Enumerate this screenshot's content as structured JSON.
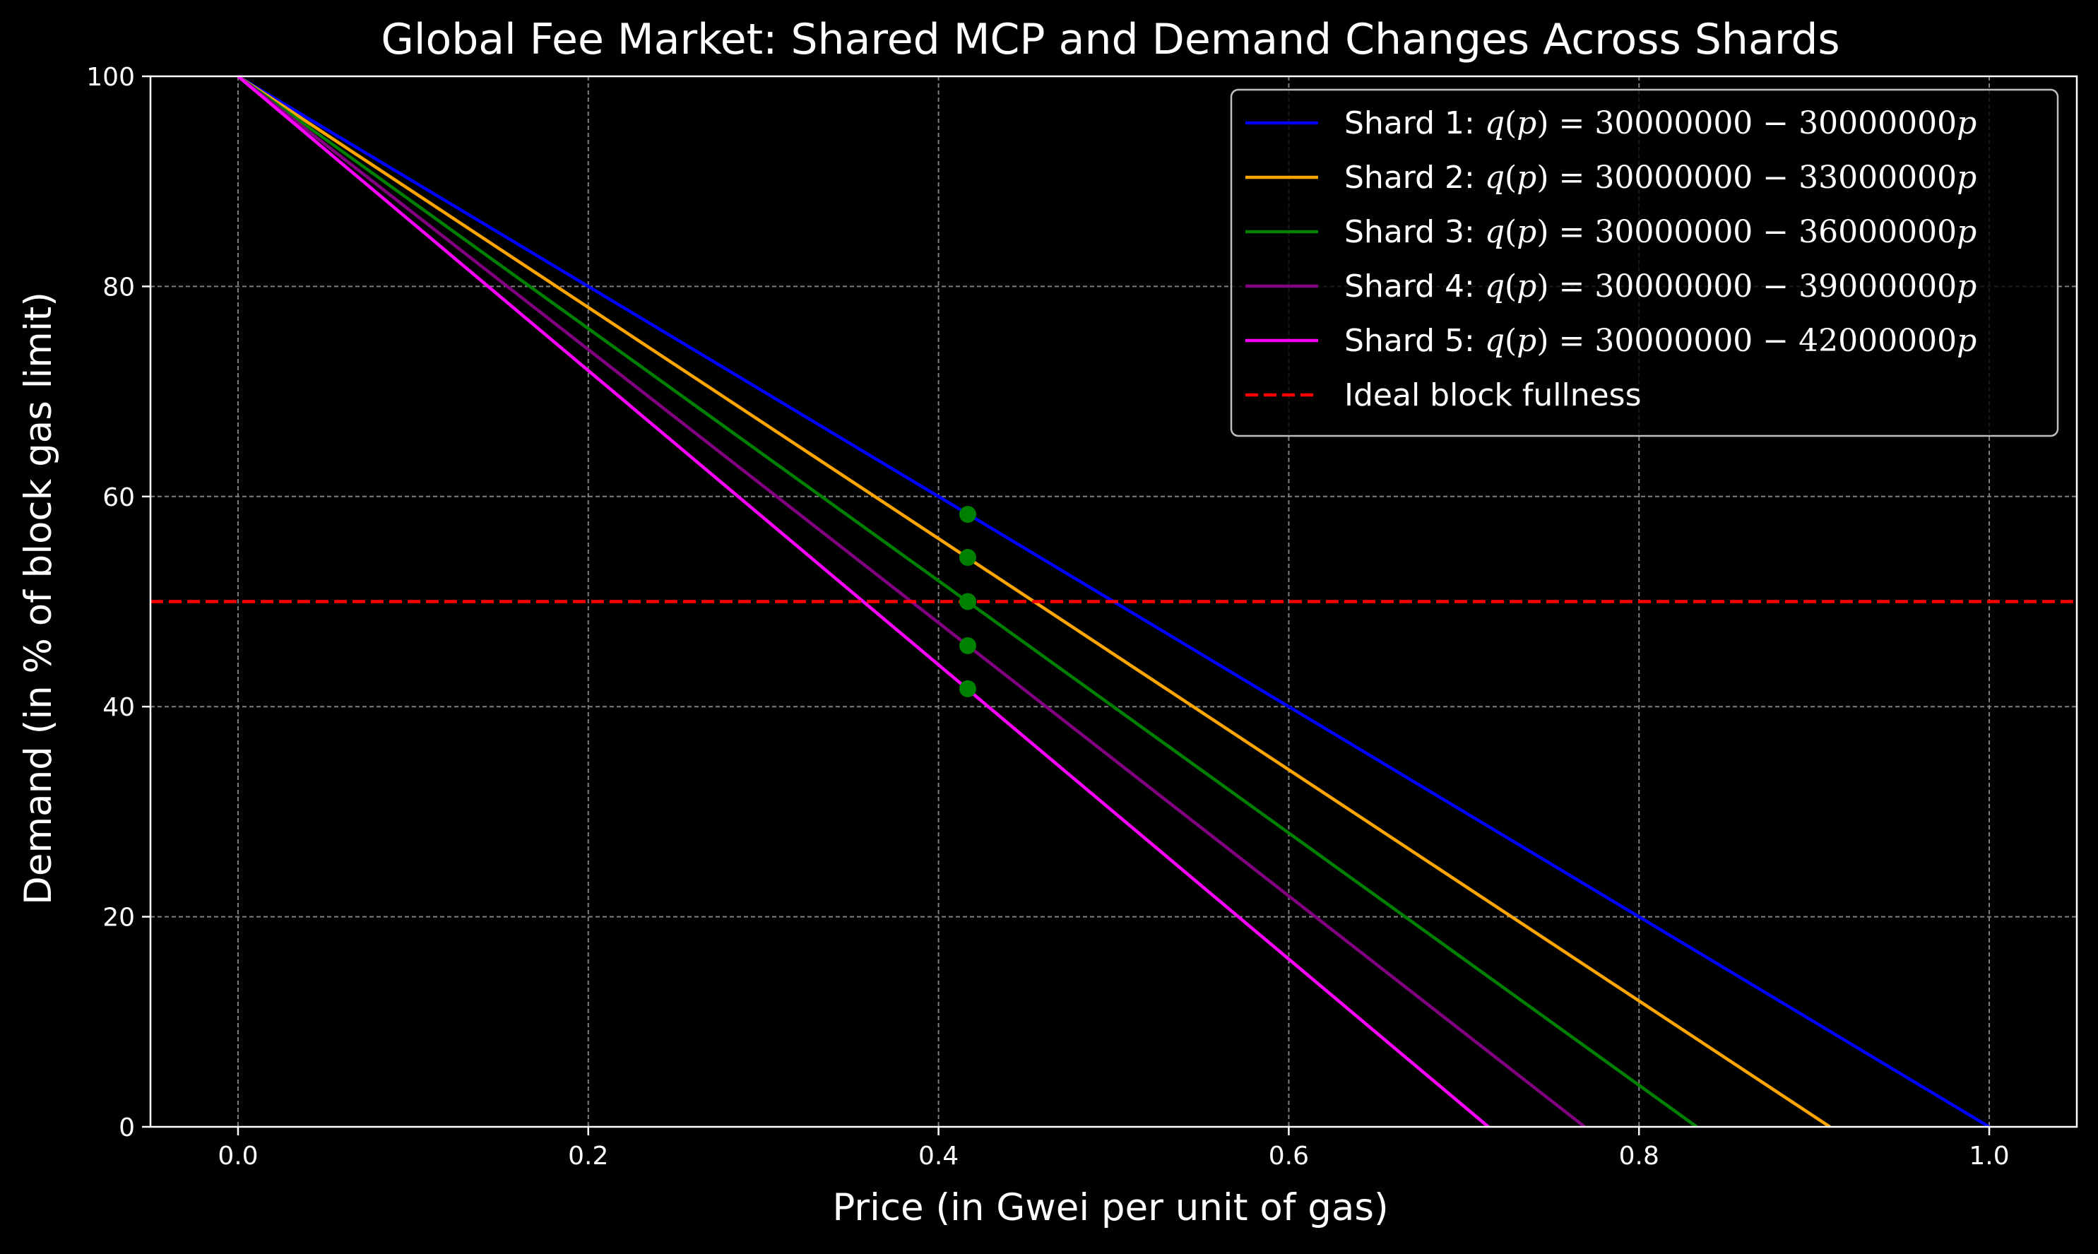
{
  "chart_data": {
    "type": "line",
    "title": "Global Fee Market: Shared MCP and Demand Changes Across Shards",
    "xlabel": "Price (in Gwei per unit of gas)",
    "ylabel": "Demand (in % of block gas limit)",
    "xlim": [
      -0.05,
      1.05
    ],
    "ylim": [
      0,
      100
    ],
    "xticks": [
      0.0,
      0.2,
      0.4,
      0.6,
      0.8,
      1.0
    ],
    "xtick_labels": [
      "0.0",
      "0.2",
      "0.4",
      "0.6",
      "0.8",
      "1.0"
    ],
    "yticks": [
      0,
      20,
      40,
      60,
      80,
      100
    ],
    "ytick_labels": [
      "0",
      "20",
      "40",
      "60",
      "80",
      "100"
    ],
    "grid": true,
    "legend_position": "top-right",
    "series": [
      {
        "name_prefix": "Shard 1:",
        "formula": {
          "lhs": "q",
          "arg": "p",
          "intercept": "30000000",
          "slope": "30000000",
          "var": "p"
        },
        "color": "#0000ff",
        "x": [
          0.0,
          1.0
        ],
        "y": [
          100,
          0
        ]
      },
      {
        "name_prefix": "Shard 2:",
        "formula": {
          "lhs": "q",
          "arg": "p",
          "intercept": "30000000",
          "slope": "33000000",
          "var": "p"
        },
        "color": "#ffa500",
        "x": [
          0.0,
          0.909
        ],
        "y": [
          100,
          0
        ]
      },
      {
        "name_prefix": "Shard 3:",
        "formula": {
          "lhs": "q",
          "arg": "p",
          "intercept": "30000000",
          "slope": "36000000",
          "var": "p"
        },
        "color": "#008000",
        "x": [
          0.0,
          0.833
        ],
        "y": [
          100,
          0
        ]
      },
      {
        "name_prefix": "Shard 4:",
        "formula": {
          "lhs": "q",
          "arg": "p",
          "intercept": "30000000",
          "slope": "39000000",
          "var": "p"
        },
        "color": "#800080",
        "x": [
          0.0,
          0.769
        ],
        "y": [
          100,
          0
        ]
      },
      {
        "name_prefix": "Shard 5:",
        "formula": {
          "lhs": "q",
          "arg": "p",
          "intercept": "30000000",
          "slope": "42000000",
          "var": "p"
        },
        "color": "#ff00ff",
        "x": [
          0.0,
          0.714
        ],
        "y": [
          100,
          0
        ]
      }
    ],
    "reference_line": {
      "name": "Ideal block fullness",
      "y": 50,
      "color": "#ff0000",
      "style": "dashed"
    },
    "points": {
      "color": "#008000",
      "x": [
        0.4167,
        0.4167,
        0.4167,
        0.4167,
        0.4167
      ],
      "y": [
        58.3,
        54.2,
        50.0,
        45.8,
        41.7
      ]
    },
    "colors": {
      "background": "#000000",
      "axes": "#ffffff",
      "grid": "#808080",
      "legend_border": "#bfbfbf"
    }
  }
}
